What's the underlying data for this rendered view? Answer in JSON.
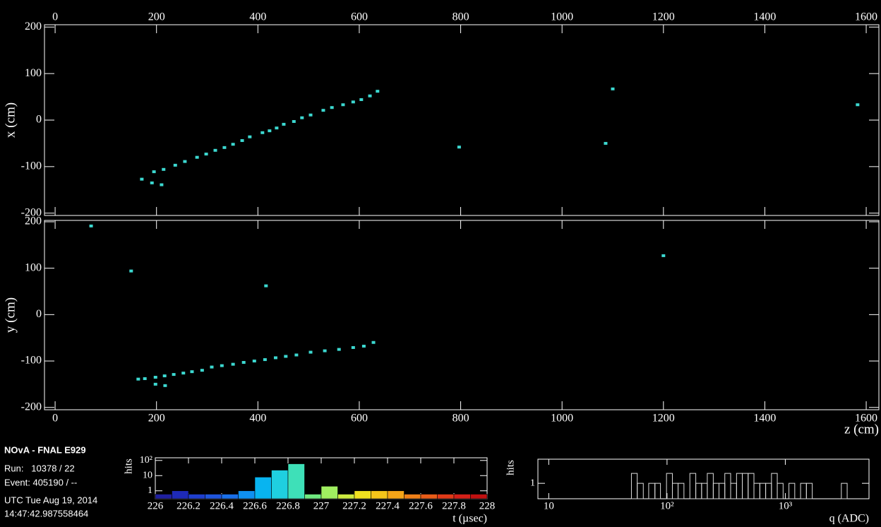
{
  "info": {
    "title": "NOvA - FNAL E929",
    "lines": [
      "Run:   10378 / 22",
      "Event: 405190 / --",
      "UTC Tue Aug 19, 2014",
      "14:47:42.987558464"
    ]
  },
  "chart_data": [
    {
      "type": "scatter",
      "y_label": "x (cm)",
      "color": "#3cd8d0",
      "xlim": [
        -21,
        1625
      ],
      "xticks": [
        0,
        200,
        400,
        600,
        800,
        1000,
        1200,
        1400,
        1600
      ],
      "ylim": [
        -205,
        205
      ],
      "yticks": [
        -200,
        -100,
        0,
        100,
        200
      ],
      "x": [
        171,
        195,
        214,
        237,
        256,
        280,
        298,
        316,
        334,
        351,
        369,
        384,
        409,
        423,
        437,
        451,
        471,
        487,
        504,
        529,
        546,
        568,
        588,
        604,
        621,
        636,
        191,
        210,
        1100,
        797,
        1086,
        1583
      ],
      "y": [
        -127,
        -111,
        -106,
        -97,
        -89,
        -80,
        -73,
        -65,
        -59,
        -52,
        -44,
        -36,
        -27,
        -23,
        -17,
        -9,
        -3,
        5,
        11,
        21,
        27,
        33,
        39,
        44,
        52,
        62,
        -135,
        -139,
        67,
        -58,
        -50,
        33
      ]
    },
    {
      "type": "scatter",
      "x_label": "z (cm)",
      "y_label": "y (cm)",
      "color": "#3cd8d0",
      "xlim": [
        -21,
        1625
      ],
      "xticks": [
        0,
        200,
        400,
        600,
        800,
        1000,
        1200,
        1400,
        1600
      ],
      "ylim": [
        -205,
        203
      ],
      "yticks": [
        -200,
        -100,
        0,
        100,
        200
      ],
      "x": [
        164,
        177,
        198,
        216,
        234,
        253,
        270,
        290,
        309,
        329,
        351,
        372,
        393,
        414,
        435,
        455,
        476,
        504,
        532,
        560,
        588,
        609,
        628,
        198,
        217,
        71,
        150,
        416,
        1200
      ],
      "y": [
        -139,
        -138,
        -135,
        -132,
        -129,
        -126,
        -123,
        -120,
        -113,
        -110,
        -107,
        -103,
        -100,
        -97,
        -93,
        -90,
        -87,
        -81,
        -78,
        -75,
        -71,
        -68,
        -60,
        -150,
        -153,
        191,
        94,
        62,
        127
      ]
    },
    {
      "type": "histogram",
      "x_label": "t (µsec)",
      "y_label": "hits",
      "ylog": true,
      "xlim": [
        226,
        228
      ],
      "xticks": [
        226,
        226.2,
        226.4,
        226.6,
        226.8,
        227,
        227.2,
        227.4,
        227.6,
        227.8,
        228
      ],
      "ylim": [
        0.3,
        150
      ],
      "yticks": [
        1,
        10,
        {
          "value": 100,
          "label": "10²"
        }
      ],
      "bins": [
        226,
        226.1,
        226.2,
        226.3,
        226.4,
        226.5,
        226.6,
        226.7,
        226.8,
        226.9,
        227,
        227.1,
        227.2,
        227.3,
        227.4,
        227.5,
        227.6,
        227.7,
        227.8,
        227.9,
        228
      ],
      "values": [
        0.6,
        1,
        0.6,
        0.6,
        0.6,
        1,
        8,
        23,
        60,
        0.6,
        2,
        0.6,
        1,
        1,
        1,
        0.6,
        0.6,
        0.6,
        0.6,
        0.6
      ],
      "colors": [
        "#2020a0",
        "#1e2ab8",
        "#1f3fce",
        "#1f55dd",
        "#1a70ea",
        "#0f90f0",
        "#08b4f0",
        "#1fcfe0",
        "#3ee0b8",
        "#70ea80",
        "#a0ee60",
        "#cdea40",
        "#f0e020",
        "#f5c51a",
        "#f5a518",
        "#f08018",
        "#e85c18",
        "#e03a18",
        "#d42018",
        "#c01010"
      ]
    },
    {
      "type": "histogram",
      "x_label": "q (ADC)",
      "y_label": "hits",
      "xlog": true,
      "ylog": true,
      "color": "#dddddd",
      "xlim": [
        8.1,
        5100
      ],
      "xticks": [
        10,
        {
          "value": 100,
          "label": "10²"
        },
        {
          "value": 1000,
          "label": "10³"
        }
      ],
      "ylim": [
        0.34,
        5.4
      ],
      "yticks": [
        1
      ],
      "bins": [
        50,
        56,
        63,
        70,
        79,
        88,
        99,
        111,
        124,
        139,
        156,
        175,
        196,
        219,
        246,
        275,
        308,
        345,
        387,
        433,
        485,
        543,
        609,
        682,
        764,
        855,
        958,
        1073,
        1202,
        1346,
        1508,
        1689,
        1892,
        2119,
        2373,
        2658,
        2977,
        3334,
        3734
      ],
      "values": [
        2,
        1,
        0,
        1,
        1,
        0,
        2,
        1,
        1,
        0,
        2,
        1,
        1,
        2,
        1,
        1,
        2,
        1,
        2,
        2,
        2,
        1,
        1,
        1,
        2,
        1,
        0,
        1,
        0,
        1,
        1,
        0,
        0,
        0,
        0,
        0,
        1,
        0
      ]
    }
  ]
}
